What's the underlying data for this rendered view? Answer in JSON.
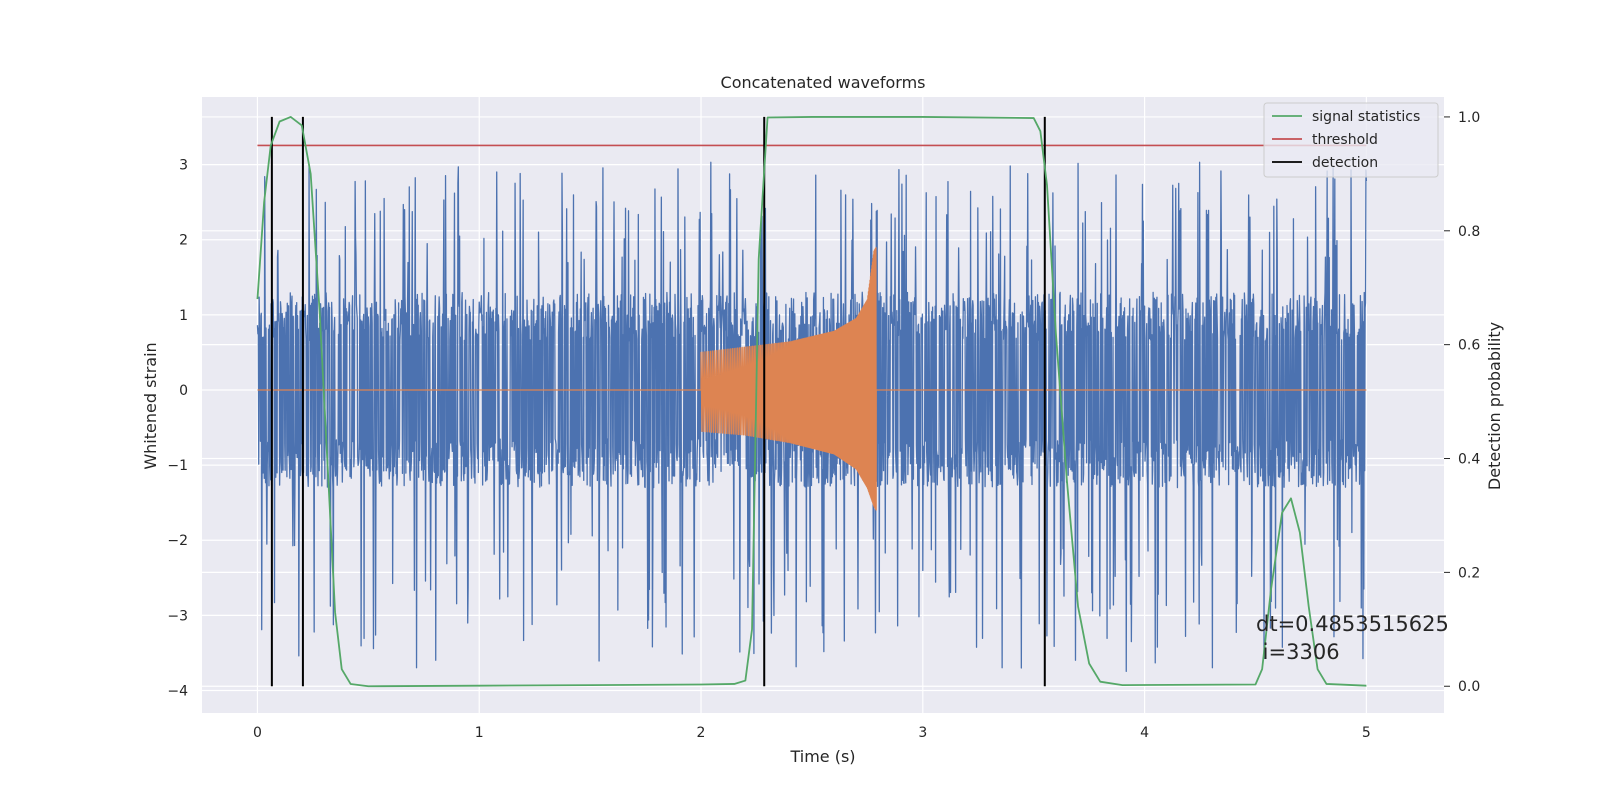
{
  "chart_data": {
    "type": "line",
    "title": "Concatenated waveforms",
    "xlabel": "Time (s)",
    "ylabel": "Whitened strain",
    "y2label": "Detection probability",
    "xlim": [
      -0.25,
      5.35
    ],
    "ylim": [
      -4.3,
      3.9
    ],
    "y2lim": [
      -0.047,
      1.035
    ],
    "xticks": [
      0,
      1,
      2,
      3,
      4,
      5
    ],
    "xtick_labels": [
      "0",
      "1",
      "2",
      "3",
      "4",
      "5"
    ],
    "yticks": [
      -4,
      -3,
      -2,
      -1,
      0,
      1,
      2,
      3
    ],
    "ytick_labels": [
      "−4",
      "−3",
      "−2",
      "−1",
      "0",
      "1",
      "2",
      "3"
    ],
    "y2ticks": [
      0.0,
      0.2,
      0.4,
      0.6,
      0.8,
      1.0
    ],
    "y2tick_labels": [
      "0.0",
      "0.2",
      "0.4",
      "0.6",
      "0.8",
      "1.0"
    ],
    "grid": true,
    "legend_position": "top-right",
    "colors": {
      "background": "#eaeaf2",
      "grid": "#ffffff",
      "noise": "#4c72b0",
      "template": "#dd8452",
      "signal_statistics": "#55a868",
      "threshold": "#c44e52",
      "detection": "#000000"
    },
    "series": [
      {
        "name": "",
        "role": "whitened-strain",
        "axis": "left",
        "t_range": [
          0,
          5
        ],
        "typical_range": [
          -1.3,
          1.3
        ],
        "peak_range": [
          -3.75,
          3.05
        ]
      },
      {
        "name": "",
        "role": "chirp-template",
        "axis": "left",
        "t_range": [
          2.0,
          2.79
        ],
        "envelope_t": [
          2.0,
          2.2,
          2.4,
          2.6,
          2.7,
          2.75,
          2.78,
          2.79
        ],
        "envelope_upper": [
          0.5,
          0.57,
          0.64,
          0.78,
          0.95,
          1.2,
          1.85,
          1.9
        ],
        "envelope_lower": [
          -0.55,
          -0.6,
          -0.7,
          -0.85,
          -1.05,
          -1.3,
          -1.55,
          -1.6
        ]
      },
      {
        "name": "signal statistics",
        "axis": "right",
        "x": [
          0.0,
          0.03,
          0.06,
          0.1,
          0.15,
          0.2,
          0.24,
          0.28,
          0.32,
          0.35,
          0.38,
          0.42,
          0.5,
          1.0,
          1.5,
          2.0,
          2.15,
          2.2,
          2.23,
          2.26,
          2.3,
          2.5,
          3.0,
          3.5,
          3.53,
          3.56,
          3.6,
          3.65,
          3.7,
          3.75,
          3.8,
          3.9,
          4.5,
          4.53,
          4.57,
          4.62,
          4.66,
          4.7,
          4.74,
          4.78,
          4.82,
          5.0
        ],
        "values": [
          0.68,
          0.85,
          0.95,
          0.992,
          1.0,
          0.985,
          0.9,
          0.66,
          0.36,
          0.13,
          0.03,
          0.004,
          0.0,
          0.001,
          0.002,
          0.003,
          0.004,
          0.01,
          0.1,
          0.75,
          0.999,
          1.0,
          1.0,
          0.998,
          0.975,
          0.88,
          0.62,
          0.36,
          0.14,
          0.04,
          0.008,
          0.002,
          0.003,
          0.03,
          0.17,
          0.305,
          0.33,
          0.27,
          0.14,
          0.03,
          0.004,
          0.001
        ]
      },
      {
        "name": "threshold",
        "axis": "right",
        "x": [
          0,
          5
        ],
        "values": [
          0.95,
          0.95
        ]
      },
      {
        "name": "detection",
        "axis": "right",
        "x": [
          0.065,
          0.205,
          2.285,
          3.55
        ],
        "values": [
          1,
          1,
          1,
          1
        ]
      }
    ],
    "annotation": {
      "line1": "dt=0.4853515625",
      "line2": " i=3306"
    }
  }
}
